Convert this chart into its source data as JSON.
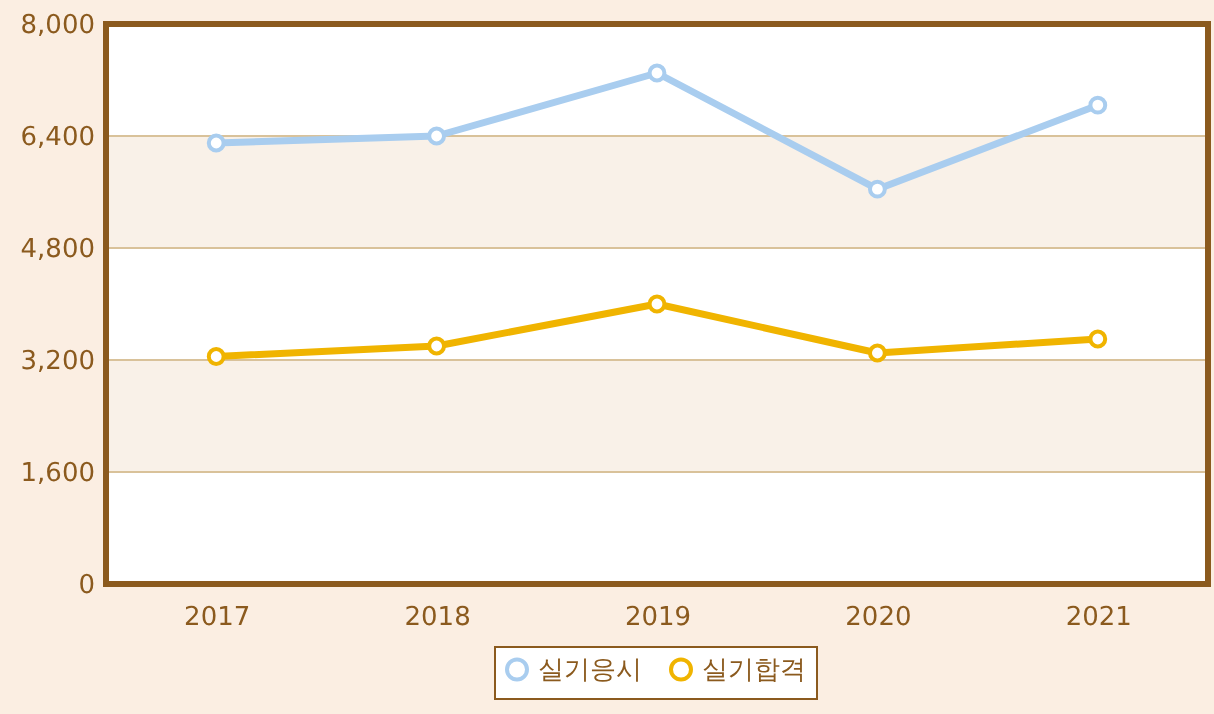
{
  "chart_data": {
    "type": "line",
    "categories": [
      "2017",
      "2018",
      "2019",
      "2020",
      "2021"
    ],
    "series": [
      {
        "name": "실기응시",
        "color": "#a9cdef",
        "values": [
          6300,
          6400,
          7300,
          5640,
          6840
        ]
      },
      {
        "name": "실기합격",
        "color": "#f0b400",
        "values": [
          3250,
          3400,
          4000,
          3300,
          3500
        ]
      }
    ],
    "ylim": [
      0,
      8000
    ],
    "yticks": [
      0,
      {
        "value": 1600,
        "label": "1,600"
      },
      {
        "value": 3200,
        "label": "3,200"
      },
      {
        "value": 4800,
        "label": "4,800"
      },
      {
        "value": 6400,
        "label": "6,400"
      },
      {
        "value": 8000,
        "label": "8,000"
      }
    ],
    "grid": "y",
    "legend": "bottom",
    "marker": "circle",
    "line_style": "solid"
  }
}
